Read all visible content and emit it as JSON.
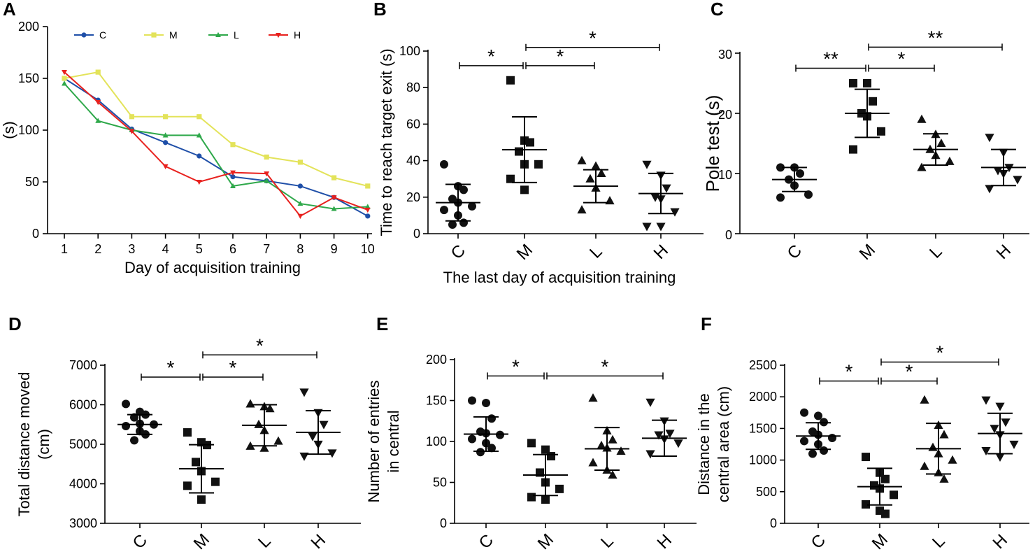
{
  "chart_data": [
    {
      "id": "A",
      "panel_label": "A",
      "type": "line",
      "ylabel": "(s)",
      "xlabel": "Day of acquisition training",
      "ylim": [
        0,
        200
      ],
      "yticks": [
        0,
        50,
        100,
        150,
        200
      ],
      "x": [
        1,
        2,
        3,
        4,
        5,
        6,
        7,
        8,
        9,
        10
      ],
      "legend": "top",
      "series": [
        {
          "name": "C",
          "color": "#1f4fa8",
          "marker": "circle",
          "values": [
            150,
            129,
            101,
            88,
            75,
            55,
            51,
            46,
            35,
            17
          ]
        },
        {
          "name": "M",
          "color": "#e3e35a",
          "marker": "square",
          "values": [
            150,
            156,
            113,
            113,
            113,
            86,
            74,
            69,
            54,
            46
          ]
        },
        {
          "name": "L",
          "color": "#2ea84a",
          "marker": "triangle",
          "values": [
            145,
            109,
            100,
            95,
            95,
            46,
            51,
            29,
            24,
            26
          ]
        },
        {
          "name": "H",
          "color": "#e8211e",
          "marker": "triangle-down",
          "values": [
            156,
            127,
            99,
            65,
            50,
            59,
            58,
            17,
            35,
            23
          ]
        }
      ]
    },
    {
      "id": "B",
      "panel_label": "B",
      "type": "scatter",
      "ylabel": "Time to reach target exit (s)",
      "xlabel": "The last day of acquisition training",
      "ylim": [
        0,
        100
      ],
      "yticks": [
        0,
        20,
        40,
        60,
        80,
        100
      ],
      "categories": [
        "C",
        "M",
        "L",
        "H"
      ],
      "groups": [
        {
          "name": "C",
          "marker": "circle",
          "mean": 17,
          "sd": 10,
          "points": [
            38,
            26,
            24,
            19,
            17,
            15,
            13,
            10,
            6,
            5
          ]
        },
        {
          "name": "M",
          "marker": "square",
          "mean": 46,
          "sd": 18,
          "points": [
            84,
            51,
            50,
            45,
            38,
            38,
            30,
            24
          ]
        },
        {
          "name": "L",
          "marker": "triangle",
          "mean": 26,
          "sd": 9,
          "points": [
            40,
            37,
            33,
            30,
            25,
            18,
            13
          ]
        },
        {
          "name": "H",
          "marker": "triangle-down",
          "mean": 22,
          "sd": 11,
          "points": [
            38,
            32,
            25,
            20,
            19,
            12,
            4,
            4
          ]
        }
      ],
      "significance": [
        {
          "from": "C",
          "to": "M",
          "label": "*",
          "y": 92
        },
        {
          "from": "M",
          "to": "L",
          "label": "*",
          "y": 92
        },
        {
          "from": "M",
          "to": "H",
          "label": "*",
          "y": 102
        }
      ]
    },
    {
      "id": "C",
      "panel_label": "C",
      "type": "scatter",
      "ylabel": "Pole test (s)",
      "xlabel": "",
      "ylim": [
        0,
        30
      ],
      "yticks": [
        0,
        10,
        20,
        30
      ],
      "categories": [
        "C",
        "M",
        "L",
        "H"
      ],
      "groups": [
        {
          "name": "C",
          "marker": "circle",
          "mean": 9,
          "sd": 2,
          "points": [
            11,
            11,
            10,
            9,
            8,
            6.5,
            6
          ]
        },
        {
          "name": "M",
          "marker": "square",
          "mean": 20,
          "sd": 4,
          "points": [
            25,
            25,
            22,
            20,
            19.5,
            17,
            14
          ]
        },
        {
          "name": "L",
          "marker": "triangle",
          "mean": 14,
          "sd": 2.6,
          "points": [
            19,
            16.5,
            15,
            14,
            13,
            12,
            11
          ]
        },
        {
          "name": "H",
          "marker": "triangle-down",
          "mean": 11,
          "sd": 3,
          "points": [
            16,
            13.5,
            11,
            10.5,
            10,
            9,
            7.5
          ]
        }
      ],
      "significance": [
        {
          "from": "C",
          "to": "M",
          "label": "**",
          "y": 27.5
        },
        {
          "from": "M",
          "to": "L",
          "label": "*",
          "y": 27.5
        },
        {
          "from": "M",
          "to": "H",
          "label": "**",
          "y": 31
        }
      ]
    },
    {
      "id": "D",
      "panel_label": "D",
      "type": "scatter",
      "ylabel": "Total distance moved",
      "ylabel2": "(cm)",
      "xlabel": "",
      "ylim": [
        3000,
        7000
      ],
      "yticks": [
        3000,
        4000,
        5000,
        6000,
        7000
      ],
      "categories": [
        "C",
        "M",
        "L",
        "H"
      ],
      "groups": [
        {
          "name": "C",
          "marker": "circle",
          "mean": 5500,
          "sd": 250,
          "points": [
            6020,
            5820,
            5750,
            5680,
            5520,
            5500,
            5460,
            5330,
            5250,
            5100
          ]
        },
        {
          "name": "M",
          "marker": "square",
          "mean": 4380,
          "sd": 610,
          "points": [
            5300,
            5050,
            4980,
            4550,
            4320,
            4050,
            3950,
            3600
          ]
        },
        {
          "name": "L",
          "marker": "triangle",
          "mean": 5480,
          "sd": 520,
          "points": [
            6020,
            5950,
            5900,
            5500,
            5350,
            5080,
            4950,
            4900
          ]
        },
        {
          "name": "H",
          "marker": "triangle-down",
          "mean": 5300,
          "sd": 550,
          "points": [
            6320,
            5800,
            5500,
            5200,
            5000,
            4780,
            4700
          ]
        }
      ],
      "significance": [
        {
          "from": "C",
          "to": "M",
          "label": "*",
          "y": 6700
        },
        {
          "from": "M",
          "to": "L",
          "label": "*",
          "y": 6700
        },
        {
          "from": "M",
          "to": "H",
          "label": "*",
          "y": 7260
        }
      ]
    },
    {
      "id": "E",
      "panel_label": "E",
      "type": "scatter",
      "ylabel": "Number of entries",
      "ylabel2": "in central",
      "xlabel": "",
      "ylim": [
        0,
        200
      ],
      "yticks": [
        0,
        50,
        100,
        150,
        200
      ],
      "categories": [
        "C",
        "M",
        "L",
        "H"
      ],
      "groups": [
        {
          "name": "C",
          "marker": "circle",
          "mean": 109,
          "sd": 21,
          "points": [
            150,
            147,
            128,
            112,
            110,
            108,
            103,
            98,
            92,
            87
          ]
        },
        {
          "name": "M",
          "marker": "square",
          "mean": 59,
          "sd": 25,
          "points": [
            98,
            90,
            82,
            62,
            50,
            42,
            32,
            29
          ]
        },
        {
          "name": "L",
          "marker": "triangle",
          "mean": 91,
          "sd": 26,
          "points": [
            153,
            113,
            102,
            95,
            92,
            88,
            74,
            65,
            59
          ]
        },
        {
          "name": "H",
          "marker": "triangle-down",
          "mean": 104,
          "sd": 22,
          "points": [
            148,
            125,
            110,
            108,
            103,
            98,
            85
          ]
        }
      ],
      "significance": [
        {
          "from": "C",
          "to": "M",
          "label": "*",
          "y": 180
        },
        {
          "from": "M",
          "to": "H",
          "label": "*",
          "y": 180
        }
      ]
    },
    {
      "id": "F",
      "panel_label": "F",
      "type": "scatter",
      "ylabel": "Distance in the",
      "ylabel2": "central area (cm)",
      "xlabel": "",
      "ylim": [
        0,
        2500
      ],
      "yticks": [
        0,
        500,
        1000,
        1500,
        2000,
        2500
      ],
      "categories": [
        "C",
        "M",
        "L",
        "H"
      ],
      "groups": [
        {
          "name": "C",
          "marker": "circle",
          "mean": 1380,
          "sd": 210,
          "points": [
            1750,
            1700,
            1600,
            1450,
            1400,
            1350,
            1300,
            1250,
            1150,
            1100
          ]
        },
        {
          "name": "M",
          "marker": "square",
          "mean": 580,
          "sd": 290,
          "points": [
            1050,
            800,
            700,
            600,
            550,
            450,
            300,
            200,
            150
          ]
        },
        {
          "name": "L",
          "marker": "triangle",
          "mean": 1180,
          "sd": 400,
          "points": [
            1950,
            1550,
            1400,
            1200,
            1100,
            1000,
            900,
            800,
            700
          ]
        },
        {
          "name": "H",
          "marker": "triangle-down",
          "mean": 1420,
          "sd": 320,
          "points": [
            1950,
            1850,
            1600,
            1500,
            1400,
            1250,
            1150,
            1050
          ]
        }
      ],
      "significance": [
        {
          "from": "C",
          "to": "M",
          "label": "*",
          "y": 2250
        },
        {
          "from": "M",
          "to": "L",
          "label": "*",
          "y": 2250
        },
        {
          "from": "M",
          "to": "H",
          "label": "*",
          "y": 2550
        }
      ]
    }
  ]
}
